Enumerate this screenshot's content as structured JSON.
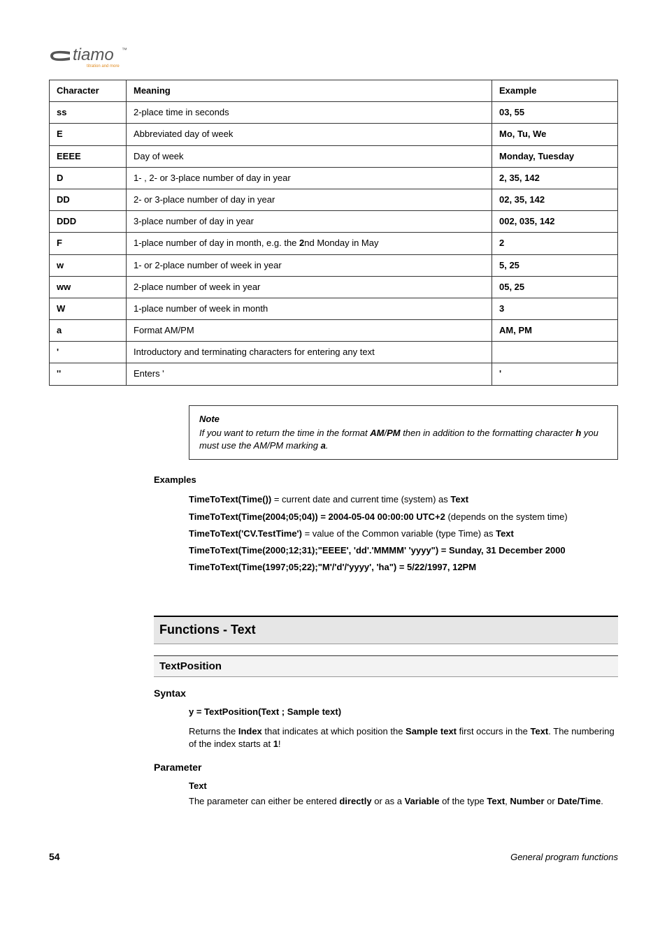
{
  "logo": {
    "text": "tiamo",
    "subtext": "titration and more",
    "trademark": "™",
    "color": "#555555",
    "sub_color": "#e08a1f"
  },
  "table": {
    "headers": {
      "character": "Character",
      "meaning": "Meaning",
      "example": "Example"
    },
    "rows": [
      {
        "char": "ss",
        "meaning": "2-place time in seconds",
        "example": "03, 55"
      },
      {
        "char": "E",
        "meaning": "Abbreviated day of week",
        "example": "Mo, Tu, We"
      },
      {
        "char": "EEEE",
        "meaning": "Day of week",
        "example": "Monday, Tuesday"
      },
      {
        "char": "D",
        "meaning": "1- , 2- or 3-place number of day in year",
        "example": "2, 35, 142"
      },
      {
        "char": "DD",
        "meaning": "2- or 3-place number of day in year",
        "example": "02, 35, 142"
      },
      {
        "char": "DDD",
        "meaning": "3-place number of day in year",
        "example": "002, 035, 142"
      },
      {
        "char": "F",
        "meaning_pre": "1-place number of day in month, e.g. the ",
        "meaning_bold": "2",
        "meaning_post": "nd Monday in May",
        "example": "2"
      },
      {
        "char": "w",
        "meaning": "1- or 2-place number of week in year",
        "example": "5, 25"
      },
      {
        "char": "ww",
        "meaning": "2-place number of week in year",
        "example": "05, 25"
      },
      {
        "char": "W",
        "meaning": "1-place number of week in month",
        "example": "3"
      },
      {
        "char": "a",
        "meaning": "Format AM/PM",
        "example": "AM, PM"
      },
      {
        "char": "'",
        "meaning": "Introductory and terminating characters for entering any text",
        "example": ""
      },
      {
        "char": "''",
        "meaning": "Enters '",
        "example": "'"
      }
    ]
  },
  "note": {
    "title": "Note",
    "pre": "If you want to return the time in the format ",
    "am": "AM",
    "slash": "/",
    "pm": "PM",
    "mid": " then in addition to the formatting character ",
    "h": "h",
    "post": " you must use the AM/PM marking ",
    "a": "a",
    "end": "."
  },
  "examples": {
    "heading": "Examples",
    "items": [
      {
        "bold": "TimeToText(Time())",
        "after": " = current date and current time (system) as ",
        "tail_bold": "Text"
      },
      {
        "bold": "TimeToText(Time(2004;05;04)) = 2004-05-04 00:00:00 UTC+2",
        "after": " (depends on the system time)"
      },
      {
        "bold": "TimeToText('CV.TestTime')",
        "after": " = value of the Common variable (type Time) as ",
        "tail_bold": "Text"
      },
      {
        "bold": "TimeToText(Time(2000;12;31);\"EEEE', 'dd'.'MMMM' 'yyyy\") = Sunday, 31 December 2000"
      },
      {
        "bold": "TimeToText(Time(1997;05;22);\"M'/'d'/'yyyy', 'ha\") = 5/22/1997, 12PM"
      }
    ]
  },
  "functions": {
    "heading": "Functions - Text",
    "subheading": "TextPosition",
    "syntax": {
      "heading": "Syntax",
      "sig": "y = TextPosition(Text ; Sample text)",
      "desc_pre": "Returns the ",
      "desc_b1": "Index",
      "desc_mid1": " that indicates at which position the ",
      "desc_b2": "Sample text",
      "desc_mid2": " first occurs in the ",
      "desc_b3": "Text",
      "desc_mid3": ". The numbering of the index starts at ",
      "desc_b4": "1",
      "desc_end": "!"
    },
    "parameter": {
      "heading": "Parameter",
      "name": "Text",
      "desc_pre": "The parameter can either be entered ",
      "desc_b1": "directly",
      "desc_mid1": " or as a ",
      "desc_b2": "Variable",
      "desc_mid2": " of the type ",
      "desc_b3": "Text",
      "desc_sep1": ", ",
      "desc_b4": "Number",
      "desc_sep2": " or ",
      "desc_b5": "Date/Time",
      "desc_end": "."
    }
  },
  "footer": {
    "page": "54",
    "right": "General program functions"
  }
}
